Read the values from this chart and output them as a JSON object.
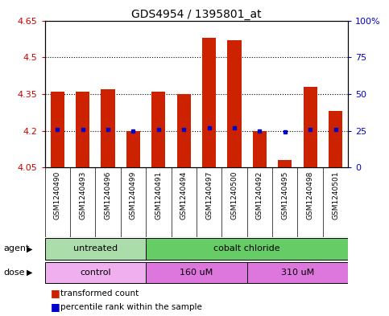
{
  "title": "GDS4954 / 1395801_at",
  "samples": [
    "GSM1240490",
    "GSM1240493",
    "GSM1240496",
    "GSM1240499",
    "GSM1240491",
    "GSM1240494",
    "GSM1240497",
    "GSM1240500",
    "GSM1240492",
    "GSM1240495",
    "GSM1240498",
    "GSM1240501"
  ],
  "bar_values": [
    4.36,
    4.36,
    4.37,
    4.2,
    4.36,
    4.35,
    4.58,
    4.57,
    4.2,
    4.08,
    4.38,
    4.28
  ],
  "percentile_values": [
    26,
    26,
    26,
    25,
    26,
    26,
    27,
    27,
    25,
    24,
    26,
    26
  ],
  "bar_bottom": 4.05,
  "ylim_left": [
    4.05,
    4.65
  ],
  "ylim_right": [
    0,
    100
  ],
  "yticks_left": [
    4.05,
    4.2,
    4.35,
    4.5,
    4.65
  ],
  "yticks_right": [
    0,
    25,
    50,
    75,
    100
  ],
  "ytick_labels_left": [
    "4.05",
    "4.2",
    "4.35",
    "4.5",
    "4.65"
  ],
  "ytick_labels_right": [
    "0",
    "25",
    "50",
    "75",
    "100%"
  ],
  "dotted_lines": [
    4.2,
    4.35,
    4.5,
    4.65
  ],
  "agent_groups": [
    {
      "label": "untreated",
      "start": 0,
      "end": 4,
      "color": "#aaddaa"
    },
    {
      "label": "cobalt chloride",
      "start": 4,
      "end": 12,
      "color": "#66cc66"
    }
  ],
  "dose_groups": [
    {
      "label": "control",
      "start": 0,
      "end": 4,
      "color": "#f0b0f0"
    },
    {
      "label": "160 uM",
      "start": 4,
      "end": 8,
      "color": "#dd77dd"
    },
    {
      "label": "310 uM",
      "start": 8,
      "end": 12,
      "color": "#dd77dd"
    }
  ],
  "bar_color": "#cc2200",
  "dot_color": "#0000cc",
  "plot_bg_color": "#ffffff",
  "sample_area_color": "#c8c8c8",
  "left_tick_color": "#cc0000",
  "right_tick_color": "#0000cc",
  "title_fontsize": 10,
  "tick_fontsize": 8,
  "label_fontsize": 8,
  "sample_fontsize": 6.5,
  "legend_fontsize": 7.5,
  "bar_width": 0.55
}
